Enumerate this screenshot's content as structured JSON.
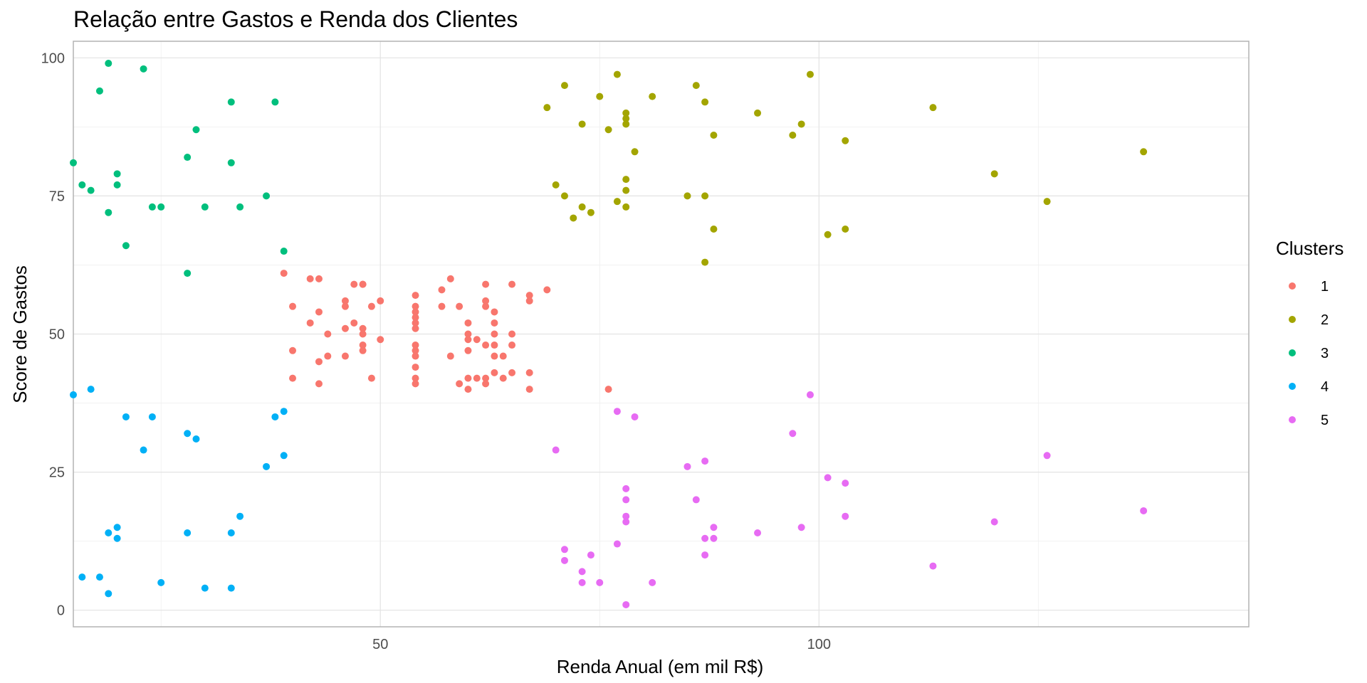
{
  "chart_data": {
    "type": "scatter",
    "title": "Relação entre Gastos e Renda dos Clientes",
    "xlabel": "Renda Anual (em mil R$)",
    "ylabel": "Score de Gastos",
    "xlim": [
      15,
      149
    ],
    "ylim": [
      -3,
      103
    ],
    "x_ticks": [
      50,
      100
    ],
    "y_ticks": [
      0,
      25,
      50,
      75,
      100
    ],
    "grid": true,
    "legend": {
      "title": "Clusters",
      "position": "right",
      "items": [
        {
          "label": "1",
          "color": "#F8766D"
        },
        {
          "label": "2",
          "color": "#A3A500"
        },
        {
          "label": "3",
          "color": "#00BF7D"
        },
        {
          "label": "4",
          "color": "#00B0F6"
        },
        {
          "label": "5",
          "color": "#E76BF3"
        }
      ]
    },
    "series": [
      {
        "name": "1",
        "color": "#F8766D",
        "points": [
          [
            39,
            61
          ],
          [
            40,
            55
          ],
          [
            40,
            47
          ],
          [
            40,
            42
          ],
          [
            42,
            52
          ],
          [
            42,
            60
          ],
          [
            43,
            60
          ],
          [
            43,
            54
          ],
          [
            43,
            45
          ],
          [
            43,
            41
          ],
          [
            44,
            50
          ],
          [
            44,
            46
          ],
          [
            46,
            51
          ],
          [
            46,
            46
          ],
          [
            46,
            56
          ],
          [
            46,
            55
          ],
          [
            47,
            52
          ],
          [
            47,
            59
          ],
          [
            48,
            51
          ],
          [
            48,
            59
          ],
          [
            48,
            50
          ],
          [
            48,
            48
          ],
          [
            48,
            59
          ],
          [
            48,
            47
          ],
          [
            49,
            55
          ],
          [
            49,
            42
          ],
          [
            50,
            49
          ],
          [
            50,
            56
          ],
          [
            54,
            47
          ],
          [
            54,
            54
          ],
          [
            54,
            53
          ],
          [
            54,
            48
          ],
          [
            54,
            52
          ],
          [
            54,
            42
          ],
          [
            54,
            51
          ],
          [
            54,
            55
          ],
          [
            54,
            41
          ],
          [
            54,
            44
          ],
          [
            54,
            57
          ],
          [
            54,
            46
          ],
          [
            57,
            58
          ],
          [
            57,
            55
          ],
          [
            58,
            60
          ],
          [
            58,
            46
          ],
          [
            59,
            55
          ],
          [
            59,
            41
          ],
          [
            60,
            49
          ],
          [
            60,
            40
          ],
          [
            60,
            42
          ],
          [
            60,
            52
          ],
          [
            60,
            47
          ],
          [
            60,
            50
          ],
          [
            61,
            42
          ],
          [
            61,
            49
          ],
          [
            62,
            41
          ],
          [
            62,
            48
          ],
          [
            62,
            59
          ],
          [
            62,
            55
          ],
          [
            62,
            56
          ],
          [
            62,
            42
          ],
          [
            63,
            50
          ],
          [
            63,
            46
          ],
          [
            63,
            43
          ],
          [
            63,
            48
          ],
          [
            63,
            52
          ],
          [
            63,
            54
          ],
          [
            64,
            42
          ],
          [
            64,
            46
          ],
          [
            65,
            48
          ],
          [
            65,
            50
          ],
          [
            65,
            43
          ],
          [
            65,
            59
          ],
          [
            67,
            43
          ],
          [
            67,
            57
          ],
          [
            67,
            56
          ],
          [
            67,
            40
          ],
          [
            69,
            58
          ],
          [
            76,
            40
          ]
        ]
      },
      {
        "name": "2",
        "color": "#A3A500",
        "points": [
          [
            69,
            91
          ],
          [
            70,
            77
          ],
          [
            71,
            95
          ],
          [
            71,
            75
          ],
          [
            72,
            71
          ],
          [
            73,
            88
          ],
          [
            73,
            73
          ],
          [
            74,
            72
          ],
          [
            75,
            93
          ],
          [
            76,
            87
          ],
          [
            77,
            97
          ],
          [
            77,
            74
          ],
          [
            78,
            90
          ],
          [
            78,
            88
          ],
          [
            78,
            76
          ],
          [
            78,
            89
          ],
          [
            78,
            78
          ],
          [
            78,
            73
          ],
          [
            79,
            83
          ],
          [
            81,
            93
          ],
          [
            85,
            75
          ],
          [
            86,
            95
          ],
          [
            87,
            63
          ],
          [
            87,
            75
          ],
          [
            87,
            92
          ],
          [
            88,
            86
          ],
          [
            88,
            69
          ],
          [
            93,
            90
          ],
          [
            97,
            86
          ],
          [
            98,
            88
          ],
          [
            99,
            97
          ],
          [
            101,
            68
          ],
          [
            103,
            85
          ],
          [
            103,
            69
          ],
          [
            113,
            91
          ],
          [
            120,
            79
          ],
          [
            126,
            74
          ],
          [
            137,
            83
          ]
        ]
      },
      {
        "name": "3",
        "color": "#00BF7D",
        "points": [
          [
            15,
            81
          ],
          [
            16,
            77
          ],
          [
            17,
            76
          ],
          [
            18,
            94
          ],
          [
            19,
            72
          ],
          [
            19,
            99
          ],
          [
            20,
            77
          ],
          [
            20,
            79
          ],
          [
            21,
            66
          ],
          [
            23,
            98
          ],
          [
            24,
            73
          ],
          [
            25,
            73
          ],
          [
            28,
            82
          ],
          [
            28,
            61
          ],
          [
            29,
            87
          ],
          [
            30,
            73
          ],
          [
            33,
            92
          ],
          [
            33,
            81
          ],
          [
            34,
            73
          ],
          [
            37,
            75
          ],
          [
            38,
            92
          ],
          [
            39,
            65
          ]
        ]
      },
      {
        "name": "4",
        "color": "#00B0F6",
        "points": [
          [
            15,
            39
          ],
          [
            16,
            6
          ],
          [
            17,
            40
          ],
          [
            18,
            6
          ],
          [
            19,
            3
          ],
          [
            19,
            14
          ],
          [
            20,
            15
          ],
          [
            20,
            13
          ],
          [
            21,
            35
          ],
          [
            23,
            29
          ],
          [
            24,
            35
          ],
          [
            25,
            5
          ],
          [
            28,
            14
          ],
          [
            28,
            32
          ],
          [
            29,
            31
          ],
          [
            30,
            4
          ],
          [
            33,
            4
          ],
          [
            33,
            14
          ],
          [
            34,
            17
          ],
          [
            37,
            26
          ],
          [
            38,
            35
          ],
          [
            39,
            36
          ],
          [
            39,
            28
          ]
        ]
      },
      {
        "name": "5",
        "color": "#E76BF3",
        "points": [
          [
            70,
            29
          ],
          [
            71,
            11
          ],
          [
            71,
            9
          ],
          [
            73,
            5
          ],
          [
            73,
            7
          ],
          [
            74,
            10
          ],
          [
            75,
            5
          ],
          [
            77,
            12
          ],
          [
            77,
            36
          ],
          [
            78,
            22
          ],
          [
            78,
            17
          ],
          [
            78,
            20
          ],
          [
            78,
            16
          ],
          [
            78,
            1
          ],
          [
            79,
            35
          ],
          [
            81,
            5
          ],
          [
            85,
            26
          ],
          [
            86,
            20
          ],
          [
            87,
            27
          ],
          [
            87,
            13
          ],
          [
            87,
            10
          ],
          [
            88,
            13
          ],
          [
            88,
            15
          ],
          [
            93,
            14
          ],
          [
            97,
            32
          ],
          [
            98,
            15
          ],
          [
            99,
            39
          ],
          [
            101,
            24
          ],
          [
            103,
            17
          ],
          [
            103,
            23
          ],
          [
            113,
            8
          ],
          [
            120,
            16
          ],
          [
            126,
            28
          ],
          [
            137,
            18
          ]
        ]
      }
    ]
  }
}
